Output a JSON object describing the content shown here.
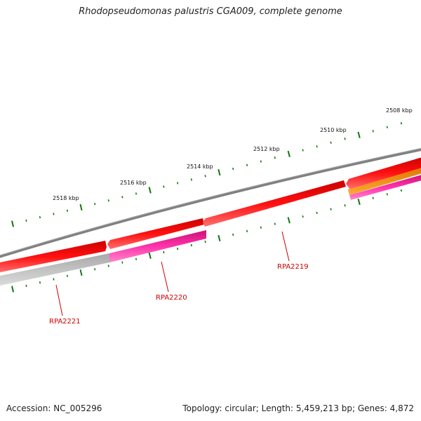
{
  "title": "Rhodopseudomonas palustris CGA009, complete genome",
  "footer": {
    "accession": "Accession: NC_005296",
    "summary": "Topology: circular; Length: 5,459,213 bp; Genes: 4,872"
  },
  "scale": {
    "labels": [
      "2518 kbp",
      "2516 kbp",
      "2514 kbp",
      "2512 kbp",
      "2510 kbp",
      "2508 kbp"
    ]
  },
  "genes": [
    {
      "name": "RPA2221",
      "color": "#cc0000"
    },
    {
      "name": "RPA2220",
      "color": "#cc0000"
    },
    {
      "name": "RPA2219",
      "color": "#cc0000"
    }
  ],
  "colors": {
    "backbone": "#808080",
    "forward_cds": "#ee0000",
    "reverse_gray": "#c0c0c0",
    "reverse_pink": "#ff3399",
    "orange_cds": "#ff8c00",
    "gc_ticks": "#007700",
    "gene_label": "#cc0000"
  }
}
